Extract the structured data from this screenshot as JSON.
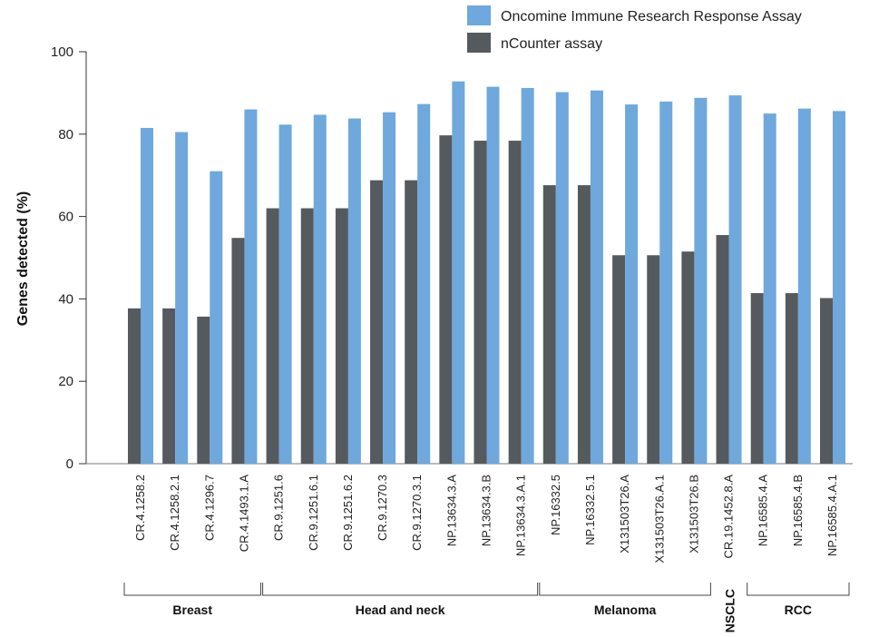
{
  "chart_data": {
    "type": "bar",
    "categories": [
      "CR.4.1258.2",
      "CR.4.1258.2.1",
      "CR.4.1296.7",
      "CR.4.1493.1.A",
      "CR.9.1251.6",
      "CR.9.1251.6.1",
      "CR.9.1251.6.2",
      "CR.9.1270.3",
      "CR.9.1270.3.1",
      "NP.13634.3.A",
      "NP.13634.3.B",
      "NP.13634.3.A.1",
      "NP.16332.5",
      "NP.16332.5.1",
      "X131503T26.A",
      "X131503T26.A.1",
      "X131503T26.B",
      "CR.19.1452.8.A",
      "NP.16585.4.A",
      "NP.16585.4.B",
      "NP.16585.4.A.1"
    ],
    "series": [
      {
        "name": "Oncomine Immune Research Response Assay",
        "color": "#6fa8dc",
        "values": [
          81.5,
          80.5,
          71,
          86,
          82.3,
          84.7,
          83.8,
          85.3,
          87.3,
          92.8,
          91.5,
          91.2,
          90.2,
          90.6,
          87.2,
          87.9,
          88.8,
          89.4,
          85,
          86.2,
          85.6
        ]
      },
      {
        "name": "nCounter assay",
        "color": "#555a5f",
        "values": [
          37.7,
          37.7,
          35.7,
          54.8,
          62,
          62,
          62,
          68.8,
          68.8,
          79.7,
          78.4,
          78.4,
          67.6,
          67.6,
          50.6,
          50.6,
          51.5,
          55.5,
          41.4,
          41.4,
          40.2
        ]
      }
    ],
    "groups": [
      {
        "name": "Breast",
        "start": 0,
        "end": 3,
        "vertical": false
      },
      {
        "name": "Head and neck",
        "start": 4,
        "end": 11,
        "vertical": false
      },
      {
        "name": "Melanoma",
        "start": 12,
        "end": 16,
        "vertical": false
      },
      {
        "name": "NSCLC",
        "start": 17,
        "end": 17,
        "vertical": true
      },
      {
        "name": "RCC",
        "start": 18,
        "end": 20,
        "vertical": false
      }
    ],
    "ylabel": "Genes detected (%)",
    "xlabel": "",
    "title": "",
    "ylim": [
      0,
      100
    ],
    "yticks": [
      0,
      20,
      40,
      60,
      80,
      100
    ],
    "grid": false,
    "legend": "top-right"
  }
}
